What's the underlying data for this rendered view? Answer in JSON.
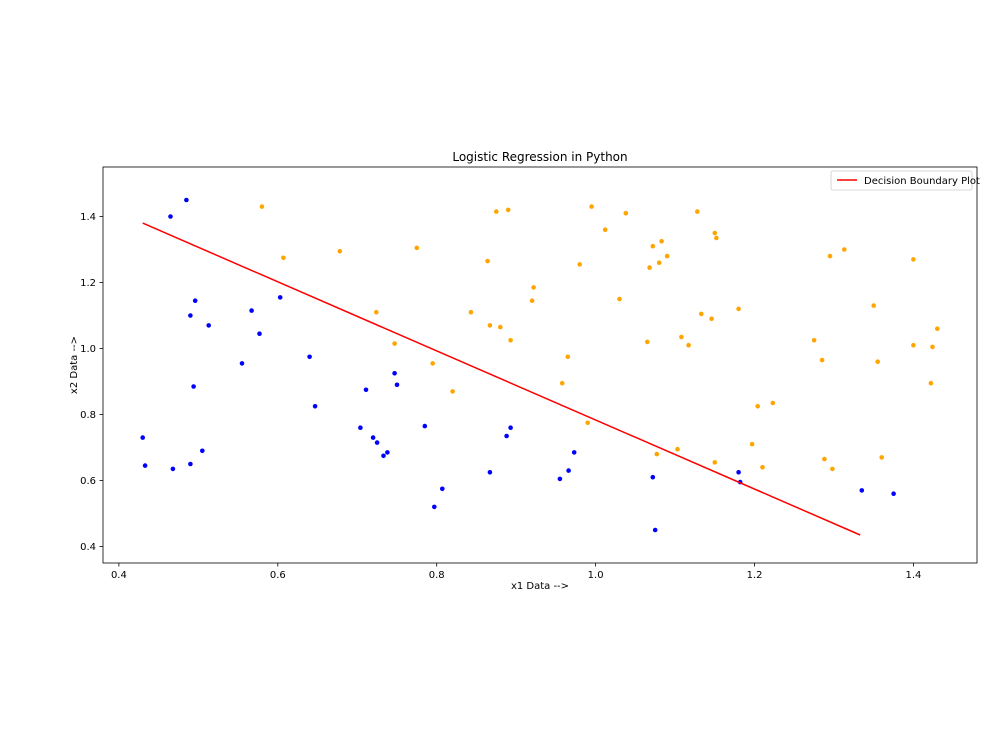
{
  "chart_data": {
    "type": "scatter",
    "title": "Logistic Regression in Python",
    "xlabel": "x1 Data -->",
    "ylabel": "x2 Data -->",
    "xlim": [
      0.38,
      1.48
    ],
    "ylim": [
      0.35,
      1.55
    ],
    "xticks": [
      "0.4",
      "0.6",
      "0.8",
      "1.0",
      "1.2",
      "1.4"
    ],
    "xtick_values": [
      0.4,
      0.6,
      0.8,
      1.0,
      1.2,
      1.4
    ],
    "yticks": [
      "0.4",
      "0.6",
      "0.8",
      "1.0",
      "1.2",
      "1.4"
    ],
    "ytick_values": [
      0.4,
      0.6,
      0.8,
      1.0,
      1.2,
      1.4
    ],
    "grid": false,
    "legend": {
      "placement": "top-right",
      "entries": [
        "Decision Boundary Plot"
      ]
    },
    "series": [
      {
        "color": "#0000ff",
        "points": [
          [
            0.43,
            0.73
          ],
          [
            0.433,
            0.645
          ],
          [
            0.465,
            1.4
          ],
          [
            0.468,
            0.635
          ],
          [
            0.485,
            1.45
          ],
          [
            0.49,
            1.1
          ],
          [
            0.49,
            0.65
          ],
          [
            0.494,
            0.885
          ],
          [
            0.496,
            1.145
          ],
          [
            0.505,
            0.69
          ],
          [
            0.513,
            1.07
          ],
          [
            0.555,
            0.955
          ],
          [
            0.567,
            1.115
          ],
          [
            0.577,
            1.045
          ],
          [
            0.603,
            1.155
          ],
          [
            0.64,
            0.975
          ],
          [
            0.647,
            0.825
          ],
          [
            0.704,
            0.76
          ],
          [
            0.711,
            0.875
          ],
          [
            0.72,
            0.73
          ],
          [
            0.725,
            0.715
          ],
          [
            0.733,
            0.675
          ],
          [
            0.738,
            0.685
          ],
          [
            0.747,
            0.925
          ],
          [
            0.75,
            0.89
          ],
          [
            0.785,
            0.765
          ],
          [
            0.797,
            0.52
          ],
          [
            0.807,
            0.575
          ],
          [
            0.867,
            0.625
          ],
          [
            0.888,
            0.735
          ],
          [
            0.893,
            0.76
          ],
          [
            0.955,
            0.605
          ],
          [
            0.966,
            0.63
          ],
          [
            0.973,
            0.685
          ],
          [
            1.072,
            0.61
          ],
          [
            1.075,
            0.45
          ],
          [
            1.18,
            0.625
          ],
          [
            1.182,
            0.595
          ],
          [
            1.335,
            0.57
          ],
          [
            1.375,
            0.56
          ]
        ]
      },
      {
        "color": "#ffa500",
        "points": [
          [
            0.58,
            1.43
          ],
          [
            0.607,
            1.275
          ],
          [
            0.678,
            1.295
          ],
          [
            0.724,
            1.11
          ],
          [
            0.747,
            1.015
          ],
          [
            0.775,
            1.305
          ],
          [
            0.795,
            0.955
          ],
          [
            0.82,
            0.87
          ],
          [
            0.843,
            1.11
          ],
          [
            0.864,
            1.265
          ],
          [
            0.867,
            1.07
          ],
          [
            0.875,
            1.415
          ],
          [
            0.88,
            1.065
          ],
          [
            0.89,
            1.42
          ],
          [
            0.893,
            1.025
          ],
          [
            0.92,
            1.145
          ],
          [
            0.922,
            1.185
          ],
          [
            0.958,
            0.895
          ],
          [
            0.965,
            0.975
          ],
          [
            0.98,
            1.255
          ],
          [
            0.99,
            0.775
          ],
          [
            0.995,
            1.43
          ],
          [
            1.012,
            1.36
          ],
          [
            1.03,
            1.15
          ],
          [
            1.038,
            1.41
          ],
          [
            1.065,
            1.02
          ],
          [
            1.068,
            1.245
          ],
          [
            1.072,
            1.31
          ],
          [
            1.077,
            0.68
          ],
          [
            1.08,
            1.26
          ],
          [
            1.083,
            1.325
          ],
          [
            1.09,
            1.28
          ],
          [
            1.103,
            0.695
          ],
          [
            1.108,
            1.035
          ],
          [
            1.117,
            1.01
          ],
          [
            1.128,
            1.415
          ],
          [
            1.133,
            1.105
          ],
          [
            1.146,
            1.09
          ],
          [
            1.15,
            1.35
          ],
          [
            1.152,
            1.335
          ],
          [
            1.15,
            0.655
          ],
          [
            1.18,
            1.12
          ],
          [
            1.197,
            0.71
          ],
          [
            1.204,
            0.825
          ],
          [
            1.21,
            0.64
          ],
          [
            1.223,
            0.835
          ],
          [
            1.275,
            1.025
          ],
          [
            1.285,
            0.965
          ],
          [
            1.288,
            0.665
          ],
          [
            1.295,
            1.28
          ],
          [
            1.298,
            0.635
          ],
          [
            1.313,
            1.3
          ],
          [
            1.35,
            1.13
          ],
          [
            1.355,
            0.96
          ],
          [
            1.36,
            0.67
          ],
          [
            1.4,
            1.01
          ],
          [
            1.4,
            1.27
          ],
          [
            1.422,
            0.895
          ],
          [
            1.424,
            1.005
          ],
          [
            1.43,
            1.06
          ]
        ]
      }
    ],
    "lines": [
      {
        "name": "Decision Boundary Plot",
        "color": "#ff0000",
        "x": [
          0.43,
          1.333
        ],
        "y": [
          1.38,
          0.435
        ]
      }
    ]
  }
}
